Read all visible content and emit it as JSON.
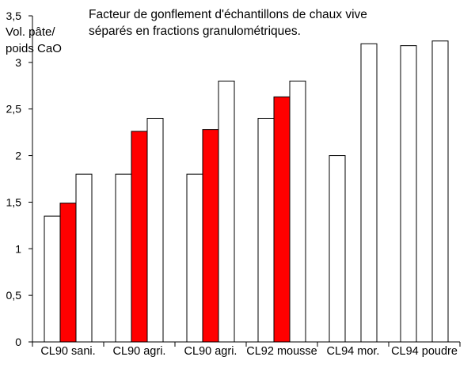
{
  "chart_data": {
    "type": "bar",
    "title_lines": [
      "Facteur de gonflement d'échantillons de chaux vive",
      "séparés en fractions granulométriques."
    ],
    "ylabel_lines": [
      "Vol. pâte/",
      "poids CaO"
    ],
    "xlabel": "",
    "ylim": [
      0,
      3.5
    ],
    "yticks": [
      0,
      0.5,
      1,
      1.5,
      2,
      2.5,
      3,
      3.5
    ],
    "ytick_labels": [
      "0",
      "0,5",
      "1",
      "1,5",
      "2",
      "2,5",
      "3",
      "3,5"
    ],
    "grid": false,
    "categories": [
      "CL90 sani.",
      "CL90 agri.",
      "CL90 agri.",
      "CL92 mousse",
      "CL94 mor.",
      "CL94 poudre"
    ],
    "series": [
      {
        "color": "#ffffff",
        "stroke": "#000000",
        "values": [
          1.35,
          1.8,
          1.8,
          2.4,
          2.0,
          3.18
        ]
      },
      {
        "color": "#ff0000",
        "stroke": "#000000",
        "values": [
          1.49,
          2.26,
          2.28,
          2.63,
          null,
          null
        ]
      },
      {
        "color": "#ffffff",
        "stroke": "#000000",
        "values": [
          1.8,
          2.4,
          2.8,
          2.8,
          3.2,
          3.23
        ]
      }
    ]
  }
}
